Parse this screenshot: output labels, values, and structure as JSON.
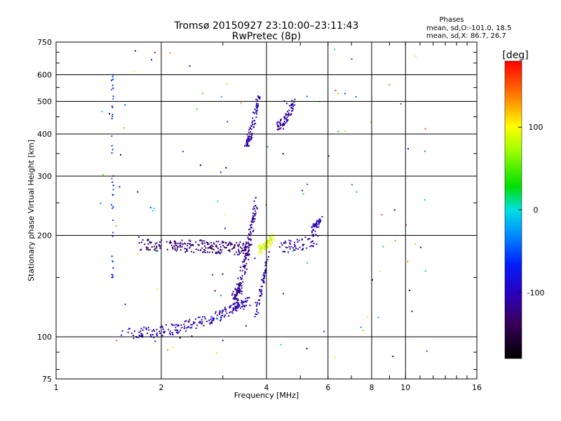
{
  "chart_data": {
    "type": "scatter",
    "title": "Tromsø 20150927 23:10:00–23:11:43",
    "subtitle": "RwPretec (8p)",
    "xlabel": "Frequency [MHz]",
    "ylabel": "Stationary phase Virtual Height [km]",
    "x_scale": "log",
    "y_scale": "log",
    "xlim": [
      1,
      16
    ],
    "ylim": [
      75,
      750
    ],
    "x_ticks": [
      1,
      2,
      4,
      6,
      8,
      10,
      16
    ],
    "y_ticks": [
      75,
      100,
      200,
      300,
      400,
      500,
      600,
      750
    ],
    "grid": true,
    "stats": {
      "heading": "Phases",
      "line1": "mean, sd,O:-101.0, 18.5",
      "line2": "mean, sd,X:  86.7, 26.7"
    },
    "colorbar": {
      "label": "[deg]",
      "range": [
        -180,
        180
      ],
      "ticks": [
        100,
        0,
        -100
      ]
    },
    "traces": [
      {
        "name": "lowtrace",
        "f": [
          1.58,
          3.55
        ],
        "h": [
          102,
          128
        ],
        "f_spread": 0.06,
        "h_spread": 4,
        "phase": -105,
        "n": 220
      },
      {
        "name": "etrace",
        "f": [
          1.75,
          3.6
        ],
        "h": [
          187,
          182
        ],
        "f_spread": 0.05,
        "h_spread": 8,
        "phase": -130,
        "n": 240
      },
      {
        "name": "ftrace",
        "f": [
          3.2,
          3.75
        ],
        "h": [
          125,
          255
        ],
        "f_spread": 0.05,
        "h_spread": 8,
        "phase": -115,
        "n": 180
      },
      {
        "name": "f2trace",
        "f": [
          3.7,
          4.05
        ],
        "h": [
          120,
          175
        ],
        "f_spread": 0.03,
        "h_spread": 6,
        "phase": -105,
        "n": 60
      },
      {
        "name": "uppertrace",
        "f": [
          3.5,
          3.8
        ],
        "h": [
          375,
          520
        ],
        "f_spread": 0.04,
        "h_spread": 15,
        "phase": -110,
        "n": 90
      },
      {
        "name": "midtrace",
        "f": [
          4.3,
          4.8
        ],
        "h": [
          420,
          495
        ],
        "f_spread": 0.05,
        "h_spread": 15,
        "phase": -115,
        "n": 70
      },
      {
        "name": "xtrace",
        "f": [
          3.8,
          4.2
        ],
        "h": [
          180,
          200
        ],
        "f_spread": 0.06,
        "h_spread": 6,
        "phase": 90,
        "n": 80
      },
      {
        "name": "rtrace",
        "f": [
          5.4,
          5.75
        ],
        "h": [
          210,
          225
        ],
        "f_spread": 0.03,
        "h_spread": 6,
        "phase": -100,
        "n": 40
      },
      {
        "name": "rtrace2",
        "f": [
          4.4,
          5.6
        ],
        "h": [
          185,
          195
        ],
        "f_spread": 0.1,
        "h_spread": 8,
        "phase": -110,
        "n": 60
      },
      {
        "name": "spurline",
        "f": [
          1.45,
          1.45
        ],
        "h": [
          150,
          620
        ],
        "f_spread": 0.01,
        "h_spread": 0,
        "phase": -60,
        "n": 40
      },
      {
        "name": "noise",
        "f": [
          1.3,
          12
        ],
        "h": [
          80,
          720
        ],
        "f_spread": 0,
        "h_spread": 0,
        "phase": 0,
        "n": 110
      }
    ]
  }
}
